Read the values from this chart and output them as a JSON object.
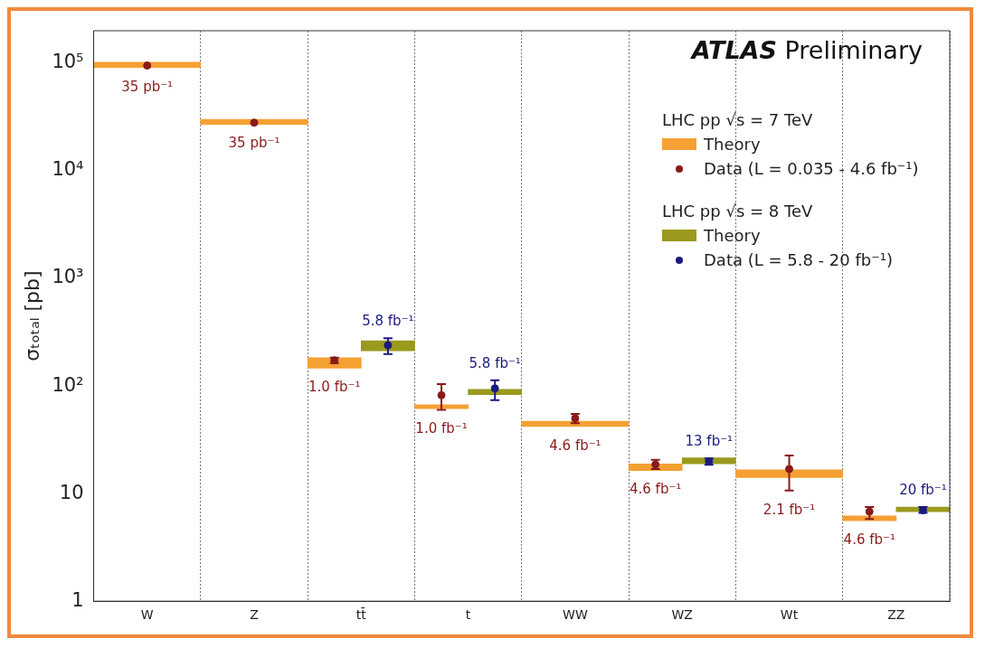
{
  "chart_data": {
    "type": "bar",
    "title": "ATLAS Preliminary",
    "ylabel": "σₜₒₜₐₗ [pb]",
    "categories": [
      "W",
      "Z",
      "tt̄",
      "t",
      "WW",
      "WZ",
      "Wt",
      "ZZ"
    ],
    "series": [
      {
        "name": "Theory",
        "color": "#f5a033",
        "base": [
          91000,
          27000,
          146,
          61.5,
          42,
          16.4,
          14.1,
          5.6
        ],
        "values": [
          11000,
          3000,
          37,
          5.5,
          5,
          2.5,
          2.5,
          0.6
        ]
      },
      {
        "name": "Data (L = 0.035 - 4.6 fb⁻¹)",
        "type": "scatter",
        "color": "#8b1a1a",
        "values": [
          95000,
          28000,
          173,
          82,
          50,
          18.6,
          16.9,
          6.8
        ],
        "errors": [
          null,
          null,
          [
            163,
            183
          ],
          [
            60,
            104
          ],
          [
            45,
            55
          ],
          [
            16.9,
            20.6
          ],
          [
            10.7,
            22.6
          ],
          [
            5.8,
            7.5
          ]
        ]
      },
      {
        "name": "Theory",
        "color": "#9a9a1e",
        "base": [
          null,
          null,
          212,
          83,
          null,
          18.9,
          null,
          6.8
        ],
        "values": [
          null,
          null,
          51,
          10,
          null,
          2.6,
          null,
          0.7
        ]
      },
      {
        "name": "Data (L = 5.8 - 20 fb⁻¹)",
        "type": "scatter",
        "color": "#1a1a80",
        "values": [
          null,
          null,
          239,
          95,
          null,
          19.9,
          null,
          7.0
        ],
        "errors": [
          null,
          null,
          [
            198,
            277
          ],
          [
            74,
            113
          ],
          null,
          [
            18.5,
            21.2
          ],
          null,
          [
            6.6,
            7.5
          ]
        ]
      }
    ],
    "log": true,
    "ylim": [
      1,
      200000
    ],
    "yticks": [
      1,
      10,
      {
        "value": 100,
        "label": "10²"
      },
      {
        "value": 1000,
        "label": "10³"
      },
      {
        "value": 10000,
        "label": "10⁴"
      },
      {
        "value": 100000,
        "label": "10⁵"
      }
    ],
    "grid": "x",
    "legend": "top right",
    "marker": "circle",
    "annotations": [
      "LHC pp √s = 7 TeV",
      "LHC pp √s = 8 TeV",
      "35 pb⁻¹",
      "35 pb⁻¹",
      "1.0 fb⁻¹",
      "1.0 fb⁻¹",
      "4.6 fb⁻¹",
      "4.6 fb⁻¹",
      "2.1 fb⁻¹",
      "4.6 fb⁻¹",
      "5.8 fb⁻¹",
      "5.8 fb⁻¹",
      "13 fb⁻¹",
      "20 fb⁻¹"
    ]
  }
}
